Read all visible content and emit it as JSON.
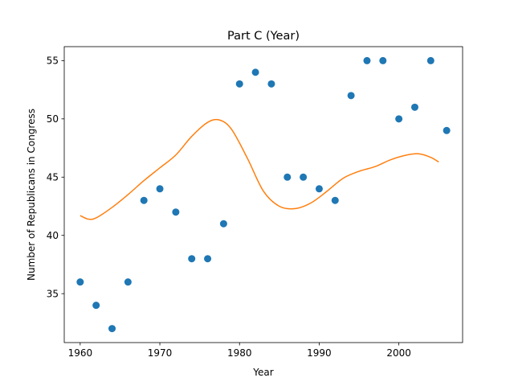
{
  "chart_data": {
    "type": "scatter",
    "title": "Part C (Year)",
    "xlabel": "Year",
    "ylabel": "Number of Republicans in Congress",
    "xlim": [
      1958,
      2008
    ],
    "ylim": [
      30.8,
      56.2
    ],
    "x_ticks": [
      1960,
      1970,
      1980,
      1990,
      2000
    ],
    "y_ticks": [
      35,
      40,
      45,
      50,
      55
    ],
    "grid": false,
    "series": [
      {
        "kind": "scatter",
        "color": "#1f77b4",
        "x": [
          1960,
          1962,
          1964,
          1966,
          1968,
          1970,
          1972,
          1974,
          1976,
          1978,
          1980,
          1982,
          1984,
          1986,
          1988,
          1990,
          1992,
          1994,
          1996,
          1998,
          2000,
          2002,
          2004,
          2006
        ],
        "y": [
          36,
          34,
          32,
          36,
          43,
          44,
          42,
          38,
          38,
          41,
          53,
          54,
          53,
          45,
          45,
          44,
          43,
          52,
          55,
          55,
          50,
          51,
          55,
          49
        ]
      },
      {
        "kind": "line",
        "color": "#ff7f0e",
        "x": [
          1960,
          1961,
          1962,
          1964,
          1966,
          1968,
          1970,
          1972,
          1974,
          1976,
          1977.5,
          1979,
          1981,
          1983,
          1985,
          1987,
          1989,
          1991,
          1993,
          1995,
          1997,
          1999,
          2001,
          2002.5,
          2004,
          2005
        ],
        "y": [
          41.7,
          41.4,
          41.5,
          42.4,
          43.5,
          44.7,
          45.8,
          46.9,
          48.5,
          49.7,
          49.9,
          49.1,
          46.6,
          43.8,
          42.5,
          42.3,
          42.8,
          43.8,
          44.9,
          45.5,
          45.9,
          46.5,
          46.9,
          47.0,
          46.7,
          46.3
        ]
      }
    ]
  }
}
